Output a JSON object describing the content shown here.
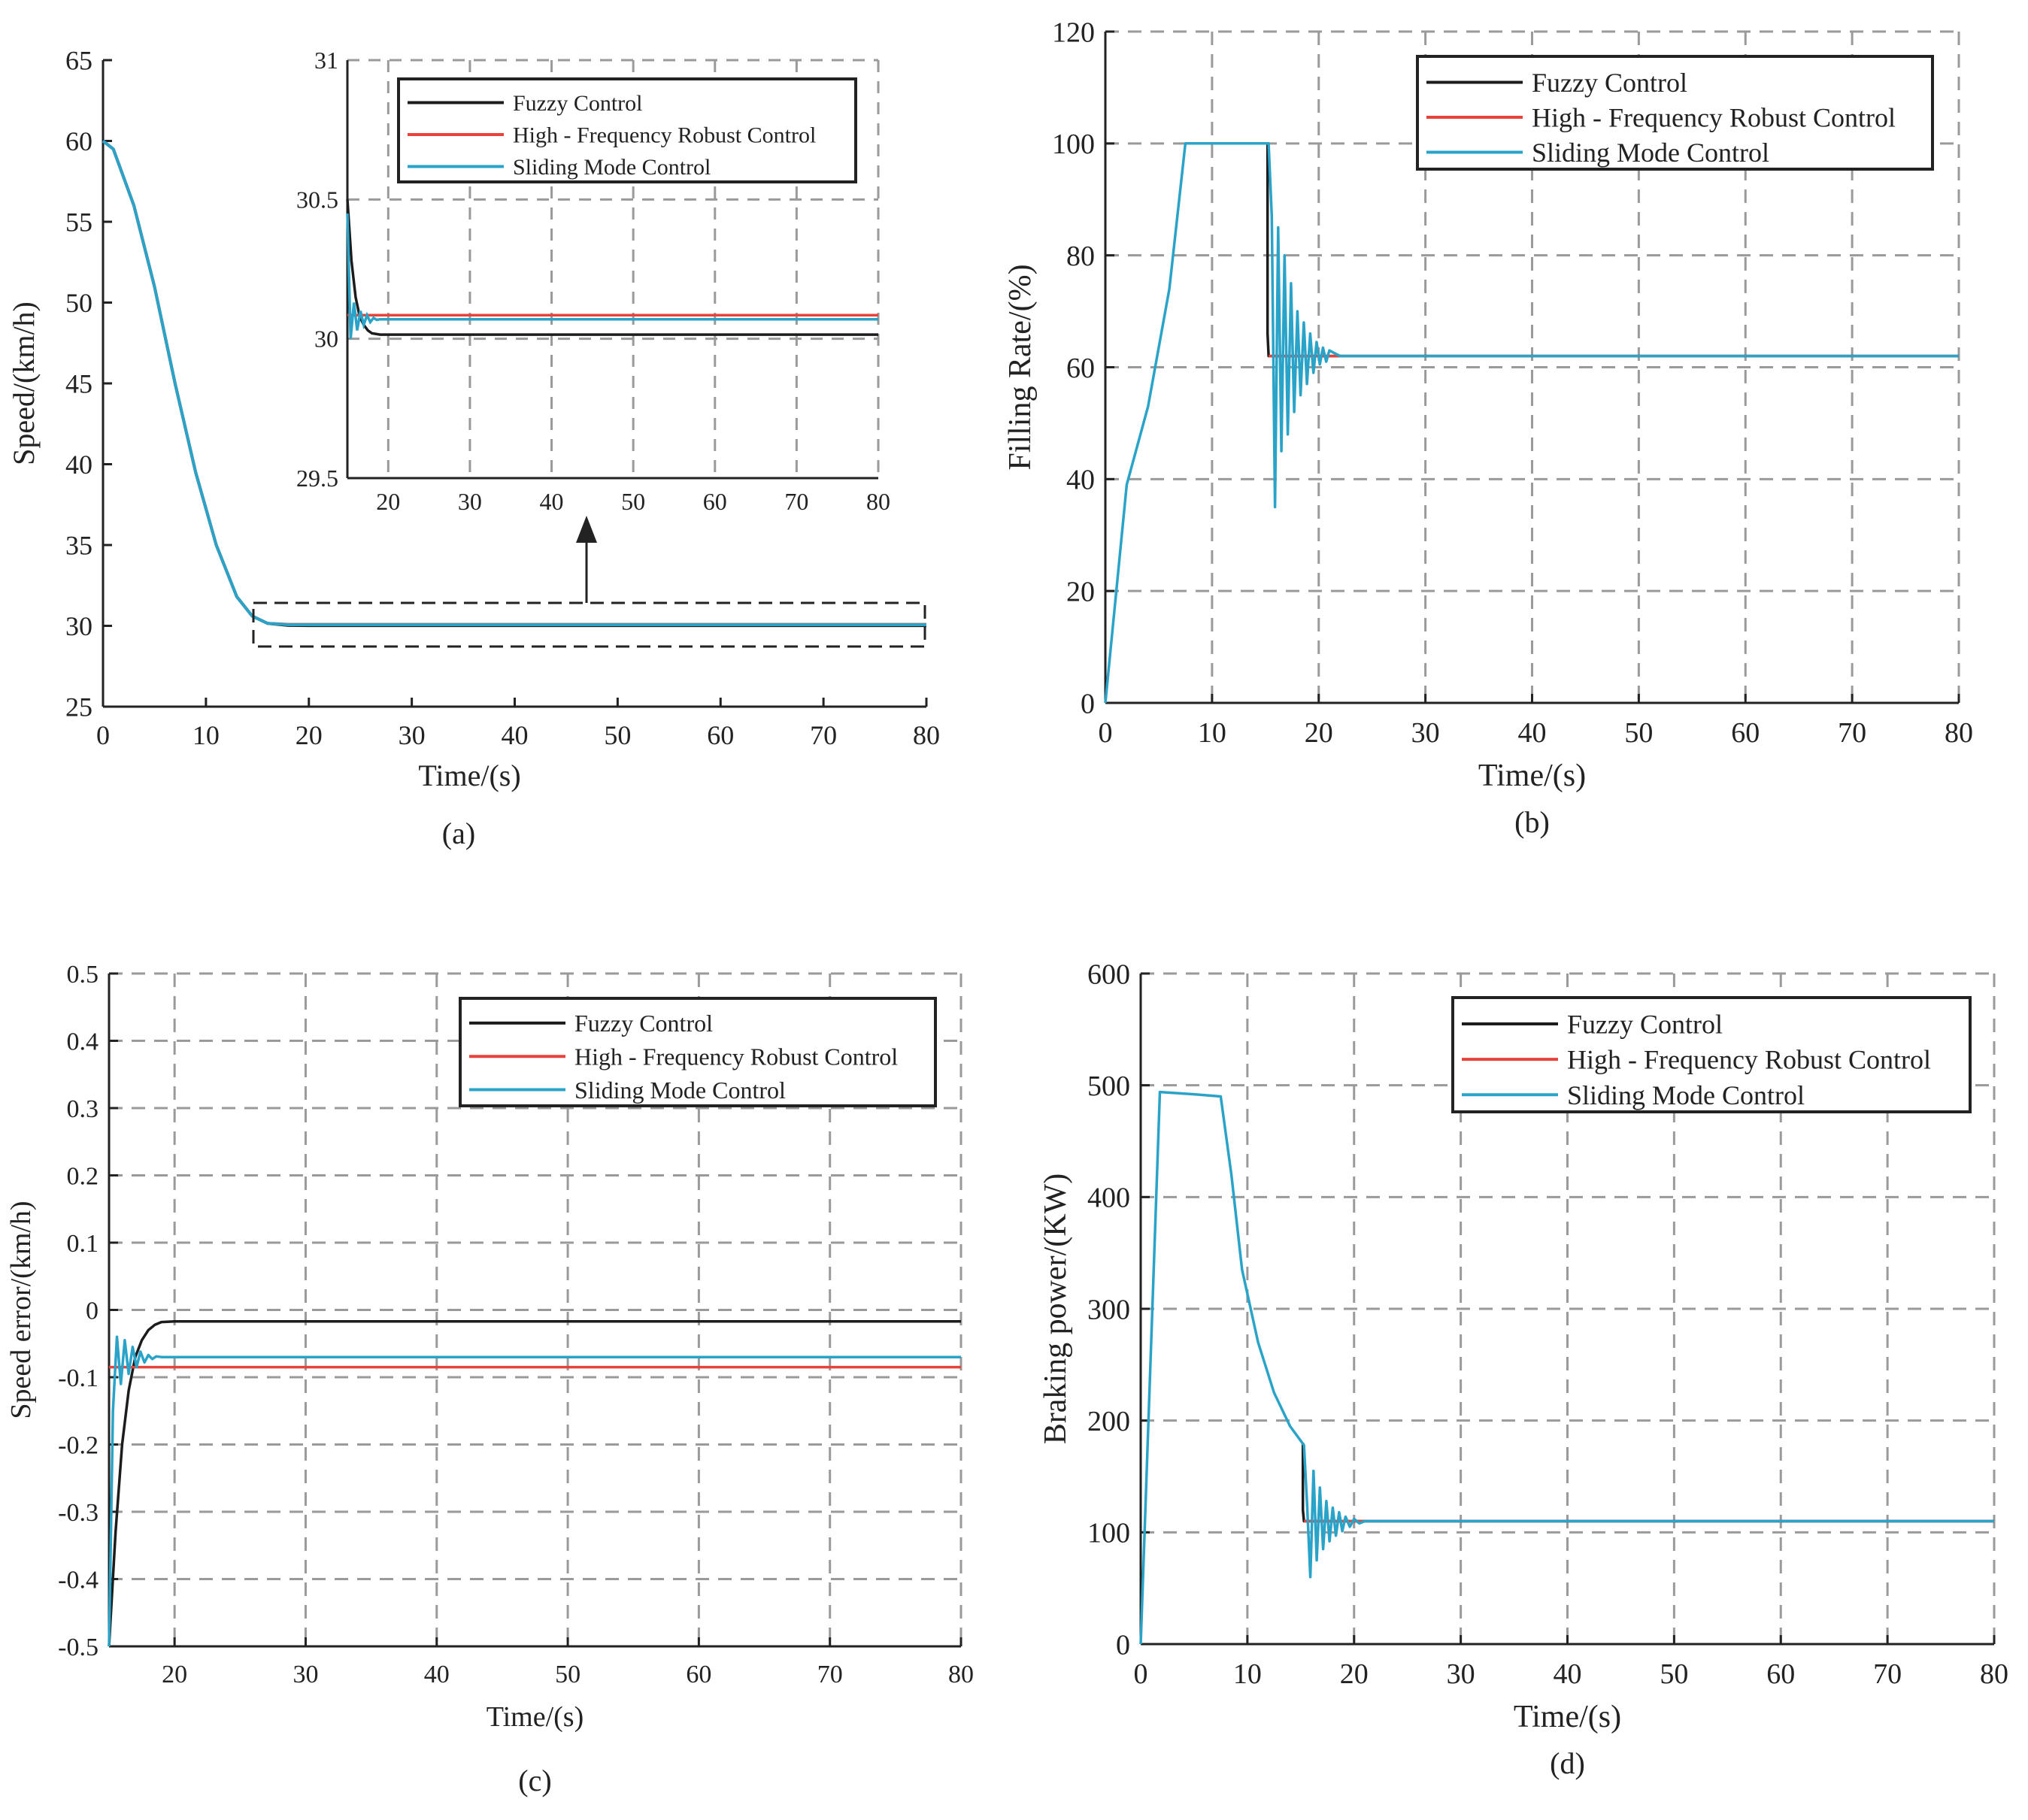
{
  "colors": {
    "fuzzy": "#1c1c1c",
    "hfrc": "#e8433a",
    "smc": "#2aa3c9",
    "axis": "#222222",
    "grid": "#9a9a9a"
  },
  "legend_labels": [
    "Fuzzy Control",
    "High - Frequency Robust Control",
    "Sliding Mode Control"
  ],
  "chart_data": [
    {
      "id": "a",
      "type": "line",
      "caption": "(a)",
      "xlabel": "Time/(s)",
      "ylabel": "Speed/(km/h)",
      "xlim": [
        0,
        80
      ],
      "ylim": [
        25,
        65
      ],
      "xticks": [
        0,
        10,
        20,
        30,
        40,
        50,
        60,
        70,
        80
      ],
      "yticks": [
        25,
        30,
        35,
        40,
        45,
        50,
        55,
        60,
        65
      ],
      "grid": false,
      "series": [
        {
          "name": "Fuzzy Control",
          "x": [
            0,
            1,
            3,
            5,
            7,
            9,
            11,
            13,
            14.5,
            16,
            18,
            20,
            80
          ],
          "y": [
            60,
            59.5,
            56,
            51,
            45,
            39.5,
            35,
            31.8,
            30.6,
            30.15,
            30.03,
            30.02,
            30.02
          ]
        },
        {
          "name": "High - Frequency Robust Control",
          "x": [
            0,
            1,
            3,
            5,
            7,
            9,
            11,
            13,
            14.5,
            16,
            18,
            20,
            80
          ],
          "y": [
            60,
            59.5,
            56,
            51,
            45,
            39.5,
            35,
            31.8,
            30.6,
            30.15,
            30.09,
            30.09,
            30.09
          ]
        },
        {
          "name": "Sliding Mode Control",
          "x": [
            0,
            1,
            3,
            5,
            7,
            9,
            11,
            13,
            14.5,
            16,
            18,
            20,
            80
          ],
          "y": [
            60,
            59.5,
            56,
            51,
            45,
            39.5,
            35,
            31.8,
            30.6,
            30.15,
            30.07,
            30.07,
            30.07
          ]
        }
      ],
      "inset": {
        "xlim": [
          15,
          80
        ],
        "ylim": [
          29.5,
          31
        ],
        "xticks": [
          20,
          30,
          40,
          50,
          60,
          70,
          80
        ],
        "yticks": [
          29.5,
          30,
          30.5,
          31
        ],
        "tick_labels_y": [
          "29.5",
          "30",
          "30.5",
          "31"
        ],
        "grid": true,
        "series": [
          {
            "name": "Fuzzy Control",
            "x": [
              15,
              15.5,
              16,
              16.5,
              17,
              17.5,
              18,
              19,
              20,
              80
            ],
            "y": [
              30.5,
              30.28,
              30.15,
              30.08,
              30.05,
              30.03,
              30.02,
              30.015,
              30.015,
              30.015
            ]
          },
          {
            "name": "High - Frequency Robust Control",
            "x": [
              15,
              80
            ],
            "y": [
              30.085,
              30.085
            ]
          },
          {
            "name": "Sliding Mode Control",
            "x": [
              15,
              15.4,
              15.8,
              16.2,
              16.6,
              17,
              17.4,
              17.8,
              18.2,
              18.6,
              19,
              80
            ],
            "y": [
              30.45,
              30.0,
              30.13,
              30.03,
              30.1,
              30.05,
              30.085,
              30.06,
              30.075,
              30.068,
              30.07,
              30.07
            ]
          }
        ]
      }
    },
    {
      "id": "b",
      "type": "line",
      "caption": "(b)",
      "xlabel": "Time/(s)",
      "ylabel": "Filling Rate/(%)",
      "xlim": [
        0,
        80
      ],
      "ylim": [
        0,
        120
      ],
      "xticks": [
        0,
        10,
        20,
        30,
        40,
        50,
        60,
        70,
        80
      ],
      "yticks": [
        0,
        20,
        40,
        60,
        80,
        100,
        120
      ],
      "grid": true,
      "series": [
        {
          "name": "Fuzzy Control",
          "x": [
            15.2,
            15.2,
            15.3,
            80
          ],
          "y": [
            100,
            66,
            62,
            62
          ]
        },
        {
          "name": "High - Frequency Robust Control",
          "x": [
            15.3,
            80
          ],
          "y": [
            62,
            62
          ]
        },
        {
          "name": "Sliding Mode Control",
          "x": [
            0,
            2,
            4,
            6,
            7.5,
            15.3,
            15.6,
            15.9,
            16.2,
            16.5,
            16.8,
            17.1,
            17.4,
            17.7,
            18.0,
            18.3,
            18.6,
            18.9,
            19.2,
            19.5,
            19.8,
            20.1,
            20.4,
            20.7,
            21.0,
            21.5,
            22,
            80
          ],
          "y": [
            0,
            39,
            53,
            74,
            100,
            100,
            87,
            35,
            85,
            45,
            80,
            48,
            75,
            52,
            70,
            55,
            68,
            57,
            66,
            59,
            64.5,
            60.5,
            63.5,
            61,
            63,
            62.5,
            62,
            62
          ]
        }
      ]
    },
    {
      "id": "c",
      "type": "line",
      "caption": "(c)",
      "xlabel": "Time/(s)",
      "ylabel": "Speed error/(km/h)",
      "xlim": [
        15,
        80
      ],
      "ylim": [
        -0.5,
        0.5
      ],
      "xticks": [
        20,
        30,
        40,
        50,
        60,
        70,
        80
      ],
      "yticks": [
        -0.5,
        -0.4,
        -0.3,
        -0.2,
        -0.1,
        0,
        0.1,
        0.2,
        0.3,
        0.4,
        0.5
      ],
      "tick_labels_y": [
        "-0.5",
        "-0.4",
        "-0.3",
        "-0.2",
        "-0.1",
        "0",
        "0.1",
        "0.2",
        "0.3",
        "0.4",
        "0.5"
      ],
      "grid": true,
      "series": [
        {
          "name": "Fuzzy Control",
          "x": [
            15,
            15.5,
            16,
            16.5,
            17,
            17.5,
            18,
            18.5,
            19,
            20,
            80
          ],
          "y": [
            -0.5,
            -0.33,
            -0.2,
            -0.12,
            -0.07,
            -0.045,
            -0.03,
            -0.022,
            -0.018,
            -0.017,
            -0.017
          ]
        },
        {
          "name": "High - Frequency Robust Control",
          "x": [
            15,
            80
          ],
          "y": [
            -0.085,
            -0.085
          ]
        },
        {
          "name": "Sliding Mode Control",
          "x": [
            15,
            15.3,
            15.6,
            15.9,
            16.2,
            16.5,
            16.8,
            17.1,
            17.4,
            17.7,
            18,
            18.3,
            18.6,
            19,
            80
          ],
          "y": [
            -0.5,
            -0.15,
            -0.04,
            -0.11,
            -0.045,
            -0.095,
            -0.055,
            -0.085,
            -0.062,
            -0.078,
            -0.067,
            -0.073,
            -0.069,
            -0.07,
            -0.07
          ]
        }
      ]
    },
    {
      "id": "d",
      "type": "line",
      "caption": "(d)",
      "xlabel": "Time/(s)",
      "ylabel": "Braking power/(KW)",
      "xlim": [
        0,
        80
      ],
      "ylim": [
        0,
        600
      ],
      "xticks": [
        0,
        10,
        20,
        30,
        40,
        50,
        60,
        70,
        80
      ],
      "yticks": [
        0,
        100,
        200,
        300,
        400,
        500,
        600
      ],
      "grid": true,
      "series": [
        {
          "name": "Fuzzy Control",
          "x": [
            15.2,
            15.2,
            15.3,
            80
          ],
          "y": [
            180,
            120,
            110,
            110
          ]
        },
        {
          "name": "High - Frequency Robust Control",
          "x": [
            15.3,
            80
          ],
          "y": [
            110,
            110
          ]
        },
        {
          "name": "Sliding Mode Control",
          "x": [
            0,
            1.8,
            5,
            7.5,
            8.5,
            9.5,
            11,
            12.5,
            14,
            15.3,
            15.6,
            15.9,
            16.2,
            16.5,
            16.8,
            17.1,
            17.4,
            17.7,
            18.0,
            18.3,
            18.6,
            18.9,
            19.2,
            19.6,
            20.0,
            20.5,
            21,
            80
          ],
          "y": [
            0,
            494,
            492,
            490,
            420,
            335,
            270,
            225,
            195,
            178,
            125,
            60,
            155,
            75,
            140,
            85,
            128,
            92,
            122,
            97,
            118,
            101,
            114,
            105,
            112,
            108,
            110,
            110
          ]
        }
      ]
    }
  ]
}
